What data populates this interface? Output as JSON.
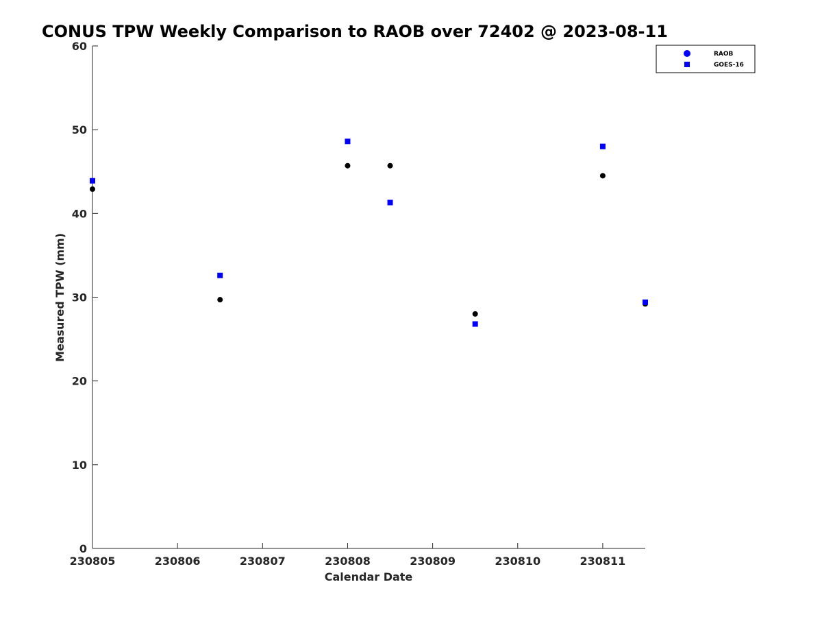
{
  "chart_data": {
    "type": "scatter",
    "title": "CONUS TPW Weekly Comparison to RAOB over 72402 @ 2023-08-11",
    "xlabel": "Calendar Date",
    "ylabel": "Measured TPW (mm)",
    "xlim": [
      "230805",
      "230811.5"
    ],
    "ylim": [
      0,
      60
    ],
    "x_ticks": [
      "230805",
      "230806",
      "230807",
      "230808",
      "230809",
      "230810",
      "230811"
    ],
    "y_ticks": [
      "0",
      "10",
      "20",
      "30",
      "40",
      "50",
      "60"
    ],
    "grid": false,
    "legend_position": "top-right",
    "series": [
      {
        "name": "RAOB",
        "marker": "circle",
        "legend_color": "#0000ff",
        "point_color": "#000000",
        "points": [
          {
            "x": "2023-08-05 00Z",
            "y": 42.9
          },
          {
            "x": "2023-08-06 12Z",
            "y": 29.7
          },
          {
            "x": "2023-08-08 00Z",
            "y": 45.7
          },
          {
            "x": "2023-08-08 12Z",
            "y": 45.7
          },
          {
            "x": "2023-08-09 12Z",
            "y": 28.0
          },
          {
            "x": "2023-08-11 00Z",
            "y": 44.5
          },
          {
            "x": "2023-08-11 12Z",
            "y": 29.2
          }
        ]
      },
      {
        "name": "GOES-16",
        "marker": "square",
        "legend_color": "#0000ff",
        "point_color": "#0000ff",
        "points": [
          {
            "x": "2023-08-05 00Z",
            "y": 43.9
          },
          {
            "x": "2023-08-06 12Z",
            "y": 32.6
          },
          {
            "x": "2023-08-08 00Z",
            "y": 48.6
          },
          {
            "x": "2023-08-08 12Z",
            "y": 41.3
          },
          {
            "x": "2023-08-09 12Z",
            "y": 26.8
          },
          {
            "x": "2023-08-11 00Z",
            "y": 48.0
          },
          {
            "x": "2023-08-11 12Z",
            "y": 29.4
          }
        ]
      }
    ]
  }
}
